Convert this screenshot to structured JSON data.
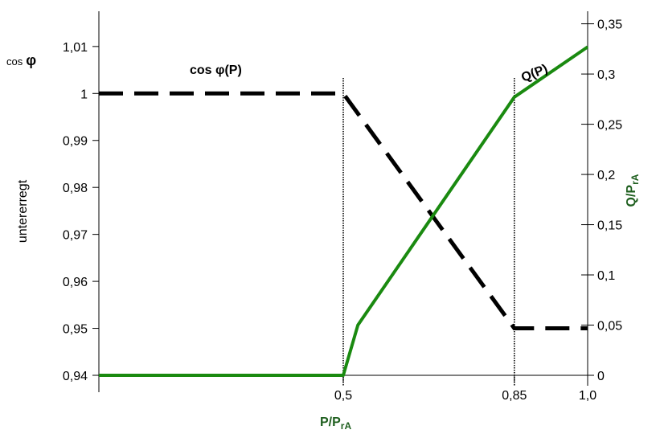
{
  "chart_data": {
    "type": "line",
    "x_axis": {
      "label_main": "P/P",
      "label_sub": "rA",
      "range": [
        0,
        1.0
      ],
      "ticks": [
        {
          "value": 0.5,
          "label": "0,5"
        },
        {
          "value": 0.85,
          "label": "0,85"
        },
        {
          "value": 1.0,
          "label": "1,0"
        }
      ]
    },
    "y_left": {
      "title_prefix": "cos",
      "title_symbol": "φ",
      "label": "untererregt",
      "range": [
        0.94,
        1.0175
      ],
      "ticks": [
        {
          "value": 0.94,
          "label": "0,94"
        },
        {
          "value": 0.95,
          "label": "0,95"
        },
        {
          "value": 0.96,
          "label": "0,96"
        },
        {
          "value": 0.97,
          "label": "0,97"
        },
        {
          "value": 0.98,
          "label": "0,98"
        },
        {
          "value": 0.99,
          "label": "0,99"
        },
        {
          "value": 1.0,
          "label": "1"
        },
        {
          "value": 1.01,
          "label": "1,01"
        }
      ]
    },
    "y_right": {
      "label_main": "Q/P",
      "label_sub": "rA",
      "range": [
        0,
        0.3625
      ],
      "color": "#1f5f1f",
      "ticks": [
        {
          "value": 0,
          "label": "0"
        },
        {
          "value": 0.05,
          "label": "0,05"
        },
        {
          "value": 0.1,
          "label": "0,1"
        },
        {
          "value": 0.15,
          "label": "0,15"
        },
        {
          "value": 0.2,
          "label": "0,2"
        },
        {
          "value": 0.25,
          "label": "0,25"
        },
        {
          "value": 0.3,
          "label": "0,3"
        },
        {
          "value": 0.35,
          "label": "0,35"
        }
      ]
    },
    "series": [
      {
        "name": "cos φ(P)",
        "axis": "left",
        "style": "dashed",
        "color": "#000000",
        "points": [
          [
            0,
            1.0
          ],
          [
            0.5,
            1.0
          ],
          [
            0.85,
            0.95
          ],
          [
            1.0,
            0.95
          ]
        ]
      },
      {
        "name": "Q(P)",
        "axis": "right",
        "style": "solid",
        "color": "#1a8a10",
        "points": [
          [
            0,
            0
          ],
          [
            0.5,
            0
          ],
          [
            0.53,
            0.05
          ],
          [
            0.85,
            0.277
          ],
          [
            1.0,
            0.327
          ]
        ]
      }
    ],
    "annotations": [
      {
        "text_prefix": "cos ",
        "text_symbol": "φ",
        "text_suffix": "(P)"
      },
      {
        "text": "Q(P)"
      }
    ],
    "reference_lines_x": [
      0.5,
      0.85
    ],
    "grid": false
  }
}
